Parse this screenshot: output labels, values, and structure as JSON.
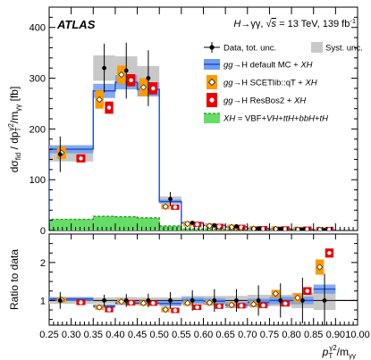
{
  "chart_data": {
    "type": "bar",
    "experiment": "ATLAS",
    "process": "H → γγ, √s = 13 TeV, 139 fb⁻¹",
    "process_parts": {
      "h": "H",
      "arrow": "→γγ, ",
      "sqrt": "√",
      "s": "s",
      "energy": " = 13 TeV, 139 fb",
      "lumi_exp": "-1"
    },
    "ylabel": "dσfid / dpT^γ2/mγγ [fb]",
    "ylabel_parts": {
      "sigma": "dσ",
      "fid": "fid",
      "mid": " / dp",
      "T": "T",
      "gamma2": "γ2",
      "over": "/m",
      "gg": "γγ",
      "unit": " [fb]"
    },
    "ratio_ylabel": "Ratio to data",
    "xlabel": "pT^γ2/mγγ",
    "xlabel_parts": {
      "p": "p",
      "T": "T",
      "gamma2": "γ2",
      "over": "/m",
      "gg": "γγ"
    },
    "bin_edges": [
      0.25,
      0.35,
      0.4,
      0.45,
      0.5,
      0.55,
      0.6,
      0.65,
      0.7,
      0.75,
      0.8,
      0.85,
      0.9,
      10.0
    ],
    "x_tick_labels": [
      "0.25",
      "0.30",
      "0.35",
      "0.40",
      "0.45",
      "0.50",
      "0.55",
      "0.60",
      "0.65",
      "0.70",
      "0.75",
      "0.80",
      "0.85",
      "0.90",
      "10.00"
    ],
    "x_tick_values": [
      0.25,
      0.3,
      0.35,
      0.4,
      0.45,
      0.5,
      0.55,
      0.6,
      0.65,
      0.7,
      0.75,
      0.8,
      0.85,
      0.9,
      10.0
    ],
    "ylim": [
      0,
      440
    ],
    "y_ticks": [
      0,
      100,
      200,
      300,
      400
    ],
    "ratio_ylim": [
      0.35,
      2.75
    ],
    "ratio_y_ticks": [
      1,
      2
    ],
    "data": {
      "name": "Data, tot. unc.",
      "points": [
        {
          "x": 0.275,
          "y": 150,
          "err": 35
        },
        {
          "x": 0.375,
          "y": 320,
          "err": 48
        },
        {
          "x": 0.425,
          "y": 315,
          "err": 55
        },
        {
          "x": 0.475,
          "y": 300,
          "err": 55
        },
        {
          "x": 0.525,
          "y": 62,
          "err": 14
        },
        {
          "x": 0.575,
          "y": 15,
          "err": 4
        },
        {
          "x": 0.625,
          "y": 10,
          "err": 3
        },
        {
          "x": 0.675,
          "y": 8,
          "err": 2.5
        },
        {
          "x": 0.725,
          "y": 4,
          "err": 1.8
        },
        {
          "x": 0.775,
          "y": 3,
          "err": 1.5
        },
        {
          "x": 0.825,
          "y": 2,
          "err": 1.2
        },
        {
          "x": 0.875,
          "y": 0.8,
          "err": 0.6
        }
      ],
      "syst": [
        14,
        25,
        28,
        24,
        5,
        2,
        1.2,
        1,
        0.6,
        0.5,
        0.4,
        0.2
      ]
    },
    "series": [
      {
        "name": "gg→H default MC + XH",
        "name_parts": {
          "gg": "gg",
          "arrow": "→",
          "rest": "H default MC + ",
          "xh": "XH"
        },
        "color": "#3366cc",
        "values": [
          160,
          275,
          292,
          278,
          57,
          15,
          10,
          7,
          4,
          3,
          2,
          0.9
        ],
        "band": [
          8,
          14,
          14,
          14,
          4,
          1.5,
          1,
          0.8,
          0.5,
          0.4,
          0.3,
          0.2
        ]
      },
      {
        "name": "gg→H SCETlib::qT + XH",
        "name_parts": {
          "gg": "gg",
          "arrow": "→",
          "rest": "H SCETlib::qT + ",
          "xh": "XH"
        },
        "color": "#ff9900",
        "values": [
          153,
          258,
          307,
          282,
          47,
          13,
          9,
          6.5,
          3.5,
          3,
          2,
          1.5
        ],
        "band": [
          12,
          18,
          18,
          18,
          5,
          1.5,
          1,
          0.8,
          0.6,
          0.5,
          0.5,
          0.4
        ]
      },
      {
        "name": "gg→H ResBos2 + XH",
        "name_parts": {
          "gg": "gg",
          "arrow": "→",
          "rest": "H ResBos2 + ",
          "xh": "XH"
        },
        "color": "#ee0000",
        "values": [
          142,
          242,
          296,
          280,
          46,
          12,
          8,
          6,
          3.5,
          3,
          2.5,
          1.8
        ],
        "band": [
          8,
          12,
          12,
          12,
          4,
          1.5,
          1,
          0.8,
          0.6,
          0.5,
          0.5,
          0.4
        ]
      },
      {
        "name": "XH = VBF+VH+ttH+bbH+tH",
        "name_parts": {
          "xh": "XH",
          "rest": " = VBF+",
          "vh": "VH",
          "plus": "+",
          "tth": "ttH",
          "plus2": "+",
          "bbh": "bbH",
          "plus3": "+",
          "th": "tH"
        },
        "color": "#44cc44",
        "values": [
          22,
          28,
          27,
          25,
          9,
          3,
          2,
          1.5,
          1,
          0.8,
          0.5,
          0.3
        ]
      }
    ],
    "ratio": {
      "syst_band": [
        0.09,
        0.08,
        0.09,
        0.08,
        0.08,
        0.12,
        0.12,
        0.12,
        0.15,
        0.15,
        0.2,
        0.25
      ],
      "data_err": [
        0.22,
        0.15,
        0.17,
        0.18,
        0.22,
        0.27,
        0.3,
        0.3,
        0.4,
        0.45,
        0.6,
        0.7
      ],
      "default_mc": [
        1.04,
        0.85,
        0.93,
        0.93,
        0.92,
        1.0,
        0.98,
        0.88,
        0.95,
        1.0,
        1.0,
        1.3
      ],
      "default_mc_band": [
        0.05,
        0.05,
        0.05,
        0.05,
        0.07,
        0.08,
        0.08,
        0.08,
        0.1,
        0.1,
        0.1,
        0.12
      ],
      "scetlib": [
        1.02,
        0.82,
        0.97,
        0.93,
        0.76,
        0.93,
        0.94,
        0.88,
        0.9,
        1.18,
        1.07,
        1.88
      ],
      "scetlib_band": [
        0.06,
        0.06,
        0.06,
        0.06,
        0.06,
        0.06,
        0.06,
        0.06,
        0.08,
        0.1,
        0.12,
        0.2
      ],
      "resbos": [
        0.95,
        0.76,
        0.94,
        0.93,
        0.74,
        0.82,
        0.85,
        0.86,
        0.87,
        0.92,
        1.25,
        2.25
      ],
      "resbos_band": [
        0.05,
        0.05,
        0.05,
        0.05,
        0.05,
        0.05,
        0.05,
        0.05,
        0.07,
        0.08,
        0.1,
        0.12
      ]
    },
    "legend": {
      "placement": "top-right",
      "syst_label": "Syst. unc."
    }
  }
}
